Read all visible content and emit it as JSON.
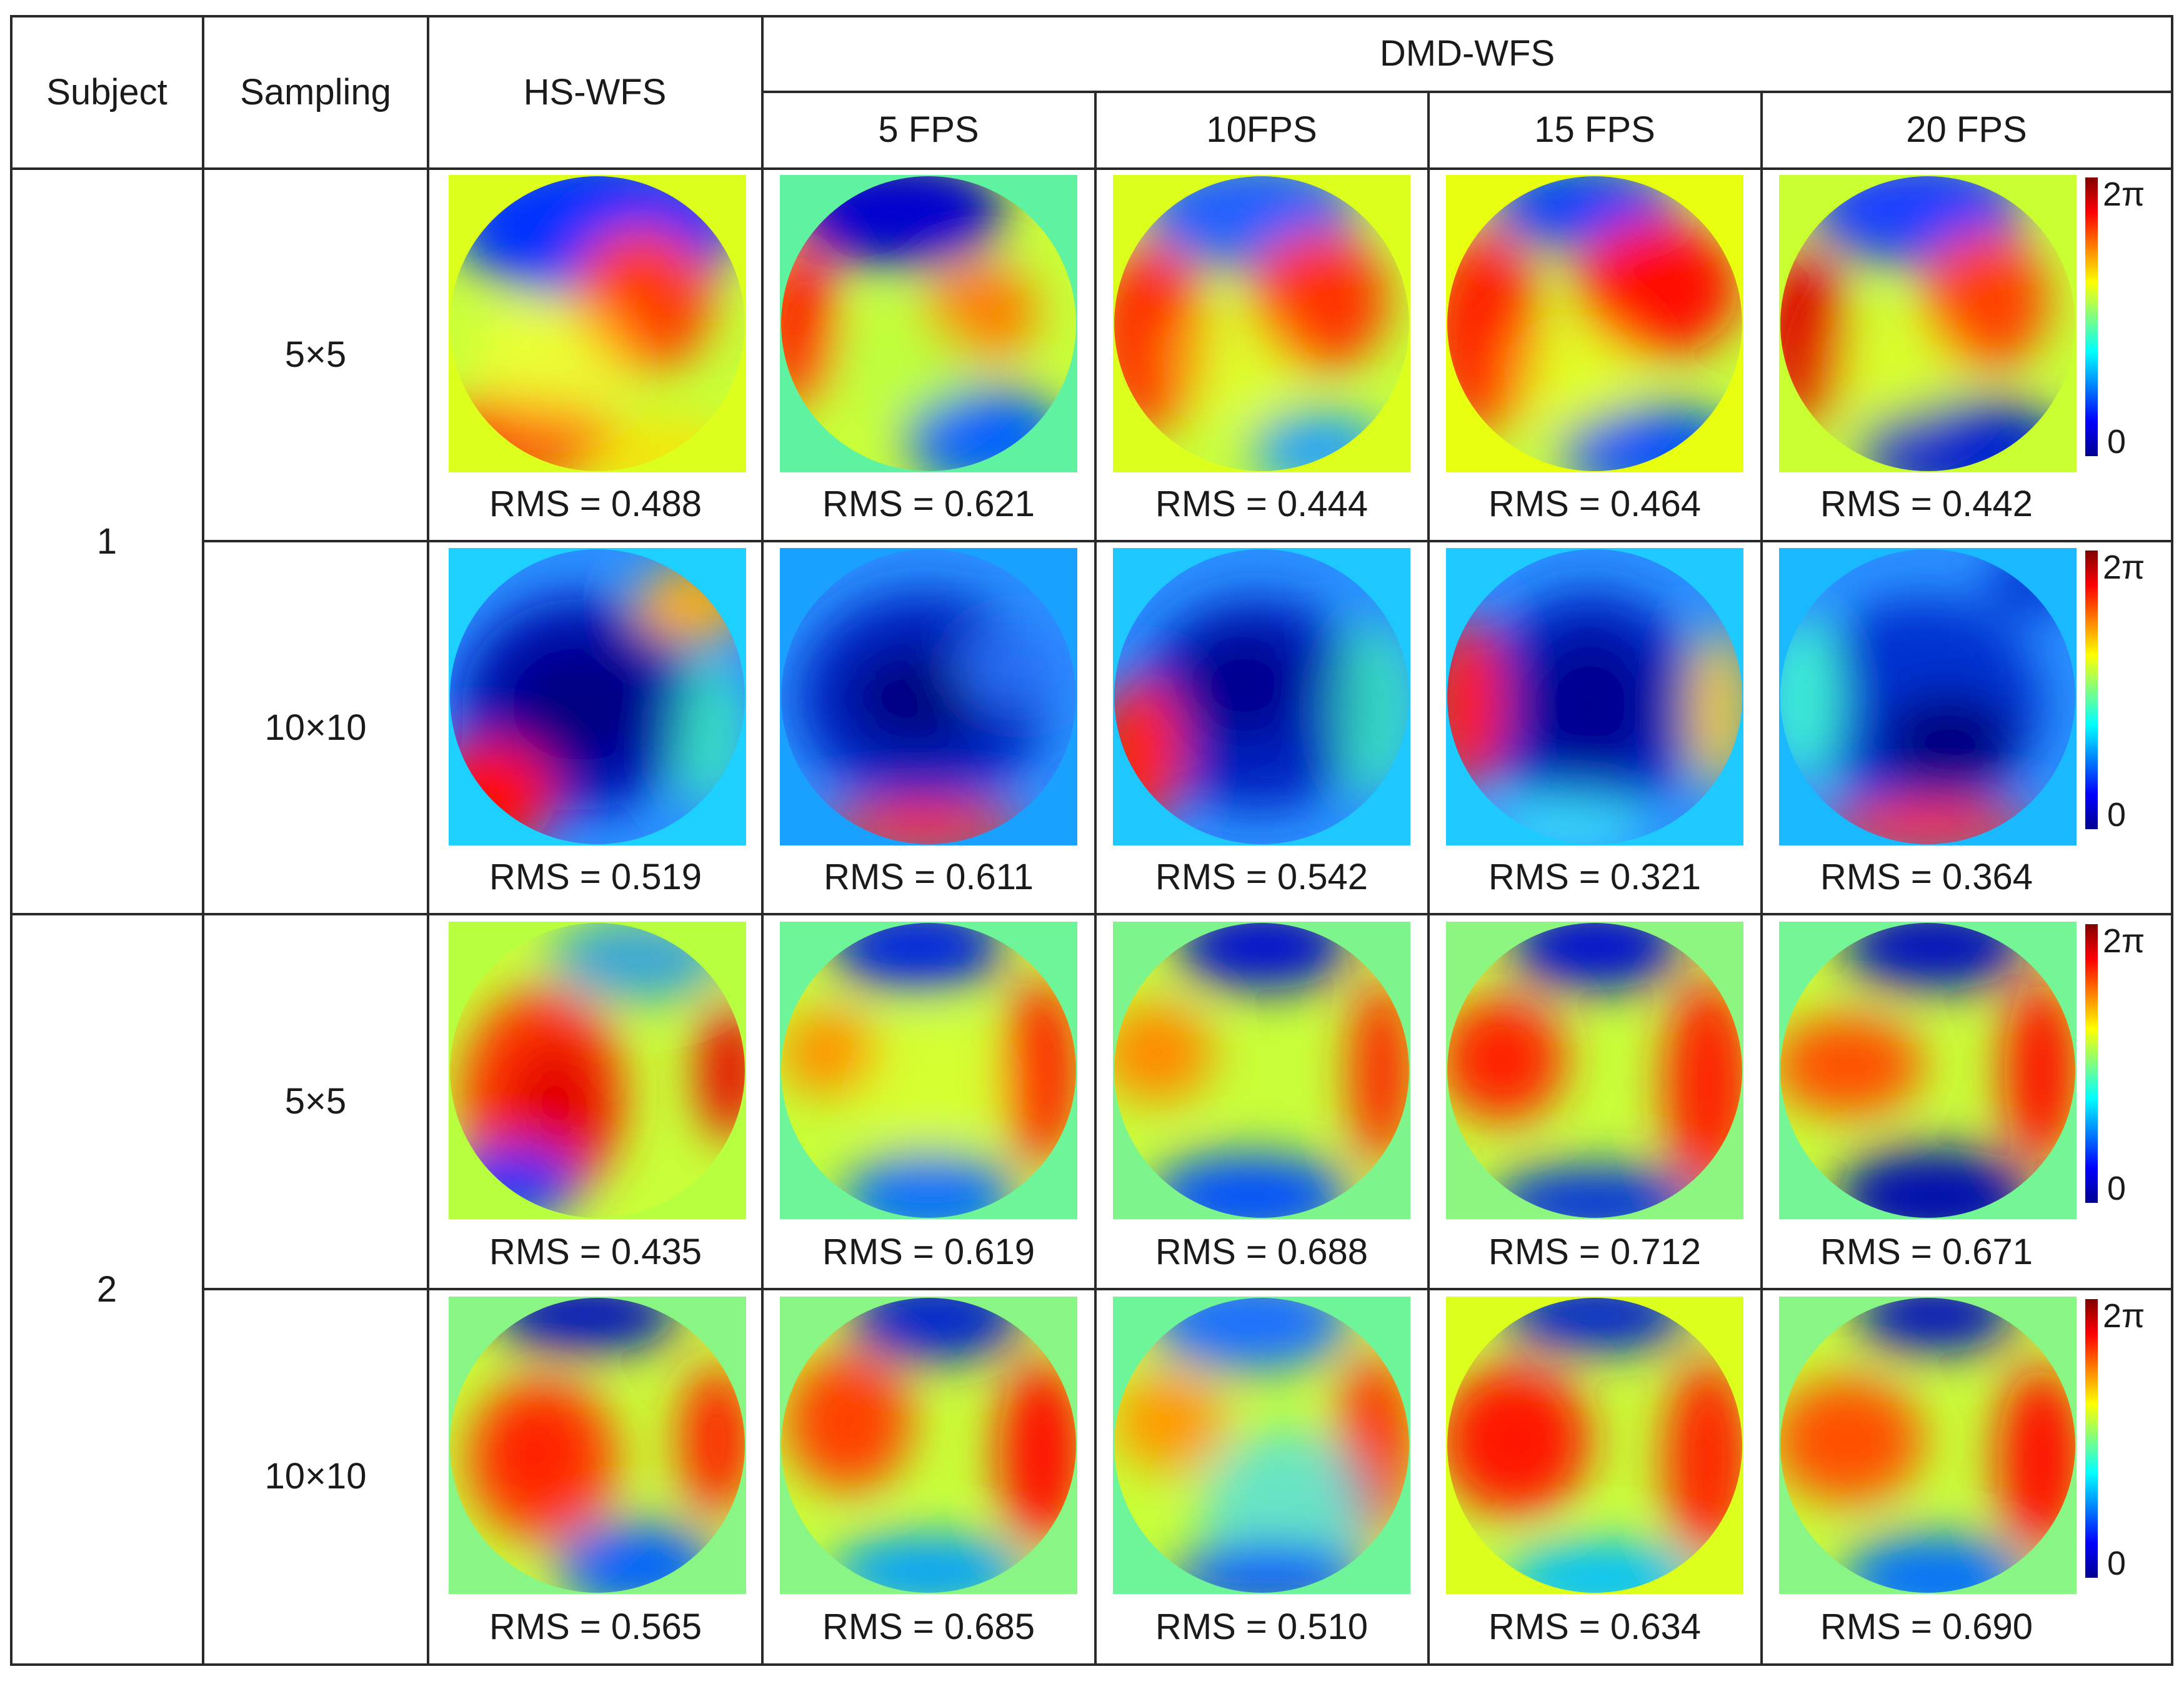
{
  "table": {
    "header": {
      "subject": "Subject",
      "sampling": "Sampling",
      "hs": "HS-WFS",
      "dmd": "DMD-WFS",
      "fps": [
        "5 FPS",
        "10FPS",
        "15 FPS",
        "20 FPS"
      ]
    },
    "subjects": [
      "1",
      "2"
    ],
    "rows": [
      {
        "sampling": "5×5",
        "rms": [
          "RMS = 0.488",
          "RMS = 0.621",
          "RMS = 0.444",
          "RMS = 0.464",
          "RMS = 0.442"
        ]
      },
      {
        "sampling": "10×10",
        "rms": [
          "RMS = 0.519",
          "RMS = 0.611",
          "RMS = 0.542",
          "RMS = 0.321",
          "RMS = 0.364"
        ]
      },
      {
        "sampling": "5×5",
        "rms": [
          "RMS = 0.435",
          "RMS = 0.619",
          "RMS = 0.688",
          "RMS = 0.712",
          "RMS = 0.671"
        ]
      },
      {
        "sampling": "10×10",
        "rms": [
          "RMS = 0.565",
          "RMS = 0.685",
          "RMS = 0.510",
          "RMS = 0.634",
          "RMS = 0.690"
        ]
      }
    ],
    "colorbar": {
      "max_label": "2π",
      "min_label": "0"
    }
  },
  "colors": {
    "line": "#2a2a2a",
    "jet": [
      "#00008f",
      "#0000ff",
      "#0080ff",
      "#00ffff",
      "#80ff80",
      "#ffff00",
      "#ff8000",
      "#ff0000",
      "#800000"
    ]
  }
}
